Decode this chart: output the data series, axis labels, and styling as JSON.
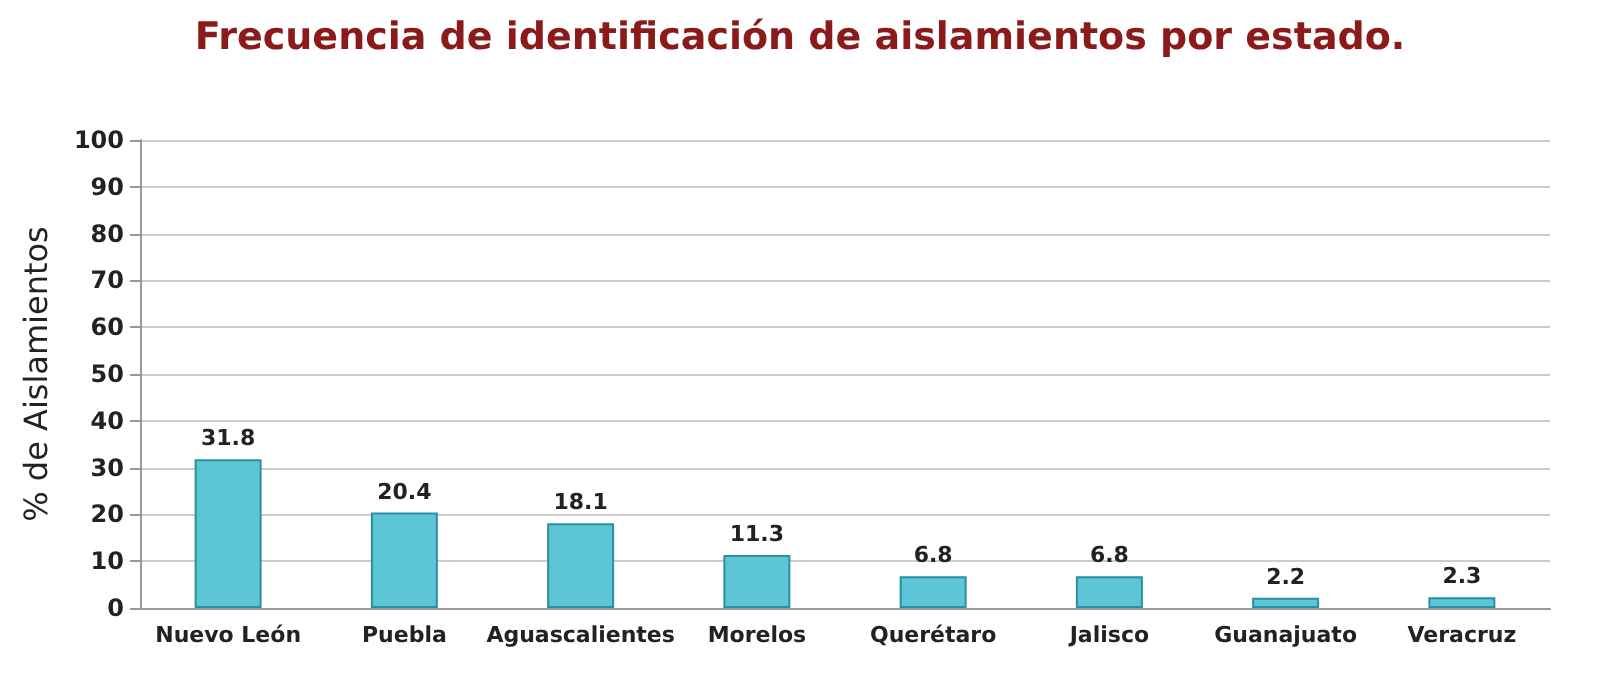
{
  "chart_data": {
    "type": "bar",
    "title": "Frecuencia de identificación de aislamientos por estado.",
    "ylabel": "% de Aislamientos",
    "categories": [
      "Nuevo León",
      "Puebla",
      "Aguascalientes",
      "Morelos",
      "Querétaro",
      "Jalisco",
      "Guanajuato",
      "Veracruz"
    ],
    "values": [
      31.8,
      20.4,
      18.1,
      11.3,
      6.8,
      6.8,
      2.2,
      2.3
    ],
    "color": "#5cc6d6",
    "ylim": [
      0,
      100
    ],
    "yticks": [
      0,
      10,
      20,
      30,
      40,
      50,
      60,
      70,
      80,
      90,
      100
    ],
    "grid": "y",
    "data_labels": true
  }
}
